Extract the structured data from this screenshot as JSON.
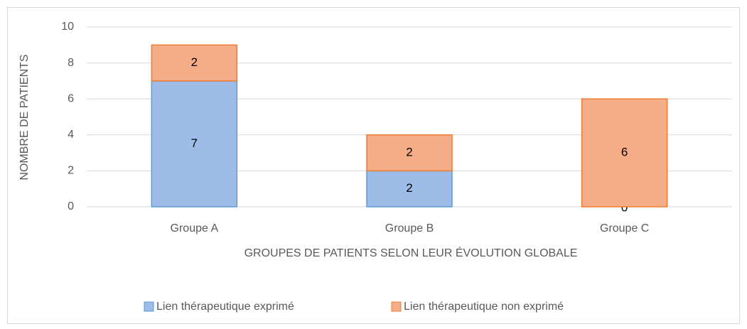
{
  "chart_data": {
    "type": "stacked_bar",
    "y_label": "NOMBRE DE PATIENTS",
    "x_label": "GROUPES DE PATIENTS SELON LEUR ÉVOLUTION GLOBALE",
    "categories": [
      "Groupe A",
      "Groupe B",
      "Groupe C"
    ],
    "series": [
      {
        "name": "Lien thérapeutique exprimé",
        "color": "#9dbde8",
        "border": "#5b9bd5",
        "values": [
          7,
          2,
          0
        ]
      },
      {
        "name": "Lien thérapeutique non exprimé",
        "color": "#f5ad87",
        "border": "#ed7d31",
        "values": [
          2,
          2,
          6
        ]
      }
    ],
    "ylim": [
      0,
      10
    ],
    "yticks": [
      0,
      2,
      4,
      6,
      8,
      10
    ],
    "grid": true,
    "legend": "bottom"
  }
}
